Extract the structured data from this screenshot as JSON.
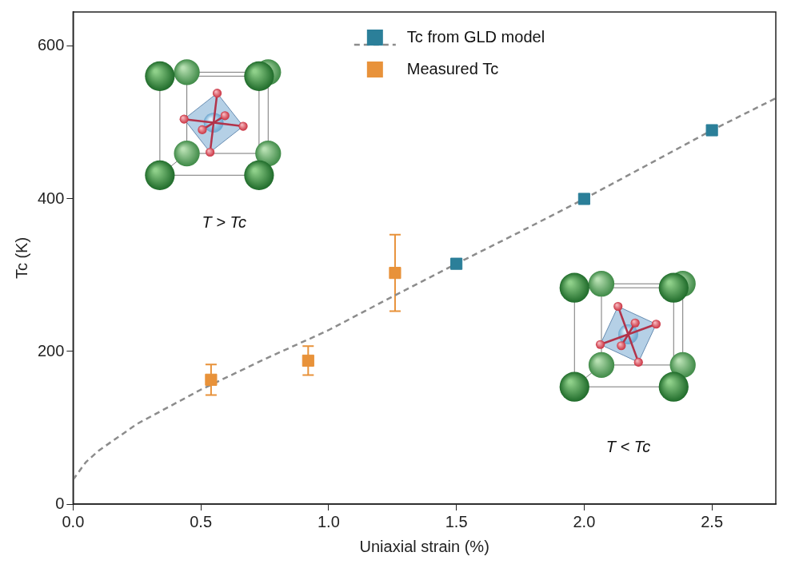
{
  "chart_data": {
    "type": "scatter",
    "x_label": "Uniaxial strain (%)",
    "y_label": "Tc (K)",
    "xlim": [
      0,
      2.75
    ],
    "xticks": [
      {
        "value": 0,
        "label": "0.0"
      },
      {
        "value": 0.5,
        "label": "0.5"
      },
      {
        "value": 1,
        "label": "1.0"
      },
      {
        "value": 1.5,
        "label": "1.5"
      },
      {
        "value": 2,
        "label": "2.0"
      },
      {
        "value": 2.5,
        "label": "2.5"
      }
    ],
    "ylim": [
      0,
      645
    ],
    "yticks": [
      0,
      200,
      400,
      600
    ],
    "grid": false,
    "legend": "top",
    "annotations": [
      "T > Tc",
      "T < Tc"
    ],
    "series": [
      {
        "name": "Tc from GLD model",
        "color": "#2b7f99",
        "marker": "square",
        "x": [
          1.5,
          2,
          2.5
        ],
        "values": [
          315,
          400,
          490
        ],
        "curve": {
          "line_style": "dashed",
          "color": "#8c8c8c",
          "x": [
            0,
            0.05,
            0.1,
            0.25,
            0.5,
            0.75,
            1,
            1.25,
            1.5,
            1.75,
            2,
            2.25,
            2.5,
            2.75
          ],
          "values": [
            32,
            55,
            70,
            105,
            150,
            190,
            228,
            272,
            315,
            357,
            400,
            445,
            490,
            532
          ]
        }
      },
      {
        "name": "Measured Tc",
        "color": "#e8923a",
        "marker": "square",
        "x": [
          0.54,
          0.92,
          1.26
        ],
        "values": [
          163,
          188,
          303
        ],
        "error": [
          20,
          19,
          50
        ]
      }
    ]
  }
}
